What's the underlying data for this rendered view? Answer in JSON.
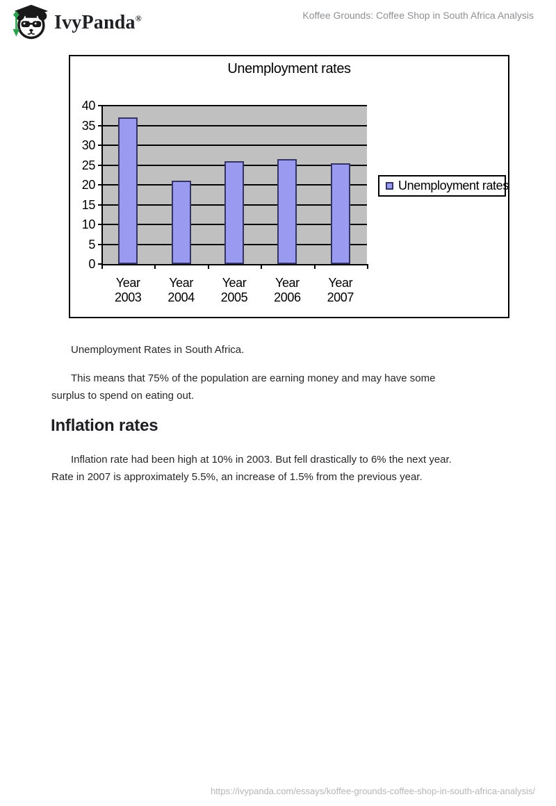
{
  "header": {
    "logo_text": "IvyPanda",
    "registered_mark": "®",
    "page_title": "Koffee Grounds: Coffee Shop in South Africa Analysis"
  },
  "chart_data": {
    "type": "bar",
    "title": "Unemployment rates",
    "categories": [
      "Year 2003",
      "Year 2004",
      "Year 2005",
      "Year 2006",
      "Year 2007"
    ],
    "series": [
      {
        "name": "Unemployment rates",
        "values": [
          37,
          21,
          26,
          26.5,
          25.5
        ]
      }
    ],
    "xlabel": "",
    "ylabel": "",
    "ylim": [
      0,
      40
    ],
    "yticks": [
      0,
      5,
      10,
      15,
      20,
      25,
      30,
      35,
      40
    ],
    "grid": true,
    "legend_position": "right",
    "legend_label": "Unemployment rates",
    "colors": {
      "bar_fill": "#9a9af0",
      "bar_border": "#333366",
      "plot_bg": "#c0c0c0",
      "gridline": "#000000"
    }
  },
  "article": {
    "caption": "Unemployment Rates in South Africa.",
    "para1": "This means that 75% of the population are earning money and may have some\nsurplus to spend on eating out.",
    "heading": "Inflation rates",
    "para2": "Inflation rate had been high at 10% in 2003. But fell drastically to 6% the next year.\nRate in 2007 is approximately 5.5%, an increase of 1.5% from the previous year."
  },
  "footer": {
    "url": "https://ivypanda.com/essays/koffee-grounds-coffee-shop-in-south-africa-analysis/"
  }
}
